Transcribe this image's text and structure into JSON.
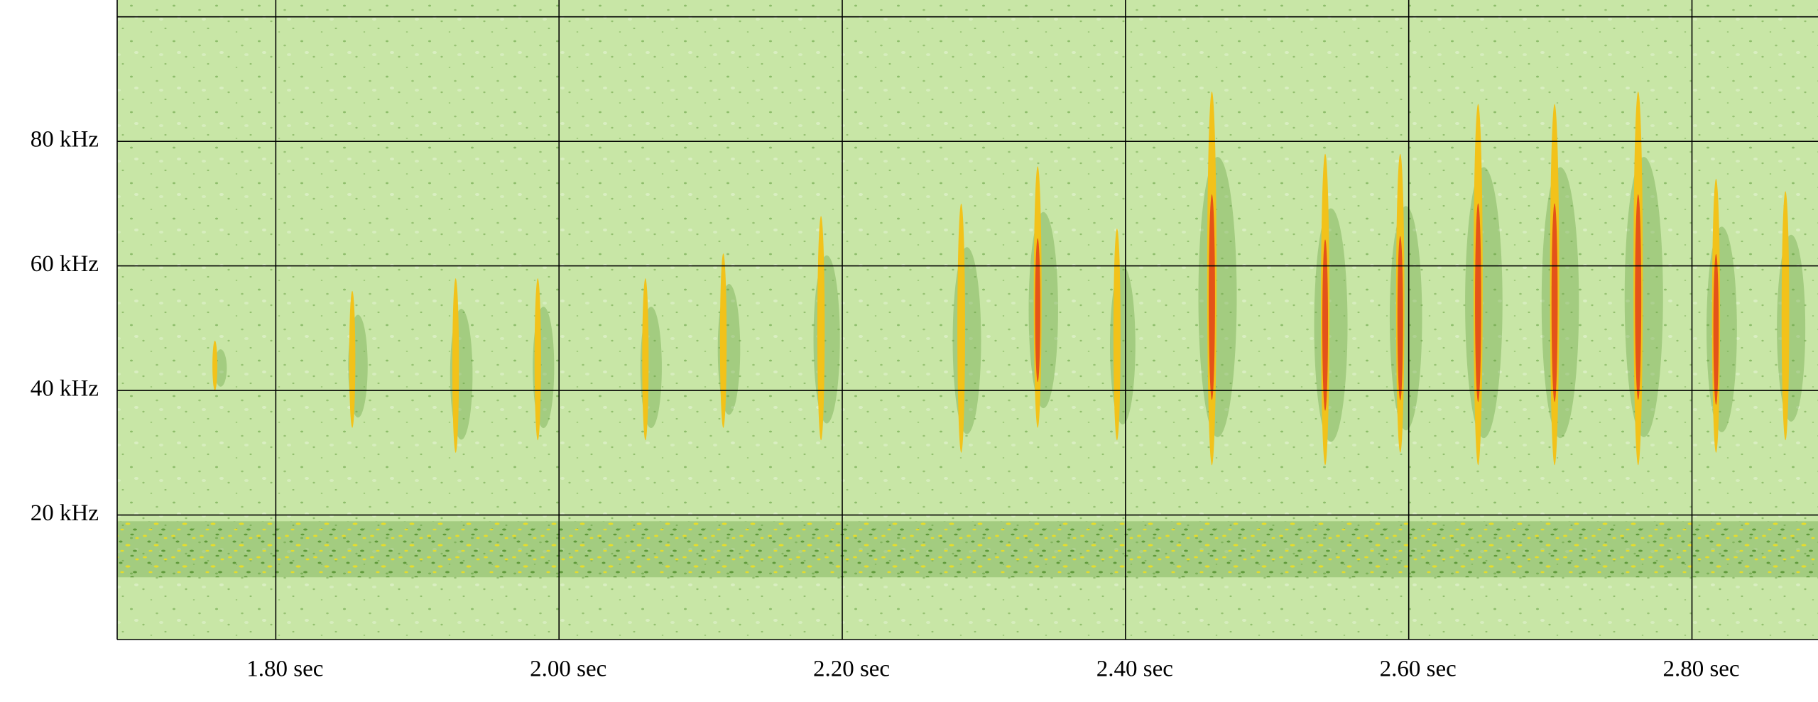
{
  "chart_data": {
    "type": "spectrogram",
    "xlim": [
      1.688,
      2.889
    ],
    "ylim": [
      0,
      102.7
    ],
    "xticks": [
      {
        "value": 1.8,
        "label": "1.80 sec"
      },
      {
        "value": 2.0,
        "label": "2.00 sec"
      },
      {
        "value": 2.2,
        "label": "2.20 sec"
      },
      {
        "value": 2.4,
        "label": "2.40 sec"
      },
      {
        "value": 2.6,
        "label": "2.60 sec"
      },
      {
        "value": 2.8,
        "label": "2.80 sec"
      }
    ],
    "yticks": [
      {
        "value": 20,
        "label": "20 kHz"
      },
      {
        "value": 40,
        "label": "40 kHz"
      },
      {
        "value": 60,
        "label": "60 kHz"
      },
      {
        "value": 80,
        "label": "80 kHz"
      },
      {
        "value": 100,
        "label": null
      }
    ],
    "grid": true,
    "noise_band": [
      10,
      19
    ],
    "colors": {
      "background": "#c8e6a6",
      "speckle": "#5f9a3a",
      "noise": "#e6dc2c",
      "call": "#f2c21a",
      "call_core": "#e2401a"
    },
    "calls": {
      "x": [
        1.757,
        1.854,
        1.927,
        1.985,
        2.061,
        2.116,
        2.185,
        2.284,
        2.338,
        2.394,
        2.461,
        2.541,
        2.594,
        2.649,
        2.703,
        2.762,
        2.817,
        2.866
      ],
      "fmin": [
        40,
        34,
        30,
        32,
        32,
        34,
        32,
        30,
        34,
        32,
        28,
        28,
        30,
        28,
        28,
        28,
        30,
        32
      ],
      "fmax": [
        48,
        56,
        58,
        58,
        58,
        62,
        68,
        70,
        76,
        66,
        88,
        78,
        78,
        86,
        86,
        88,
        74,
        72
      ]
    }
  }
}
